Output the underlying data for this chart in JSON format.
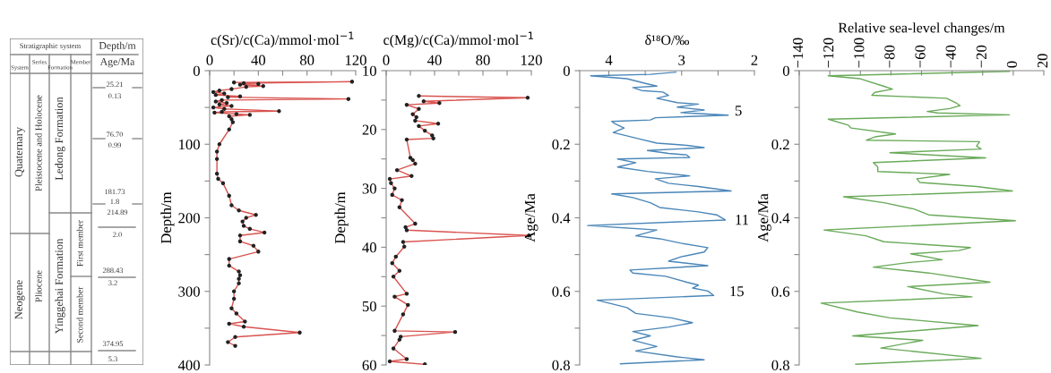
{
  "chart_data": [
    {
      "type": "other",
      "annotations": [
        "Stratigraphic system",
        "Depth/m",
        "Age/Ma",
        "System",
        "Series",
        "Formation",
        "Member",
        "Quaternary",
        "Neogene",
        "Pleistocene and Holocene",
        "Pliocene",
        "Ledong Formation",
        "Yinggehai Formation",
        "First member",
        "Second member",
        "25.21",
        "0.13",
        "76.70",
        "0.99",
        "181.73",
        "1.8",
        "214.89",
        "2.0",
        "288.43",
        "3.2",
        "374.95",
        "5.3"
      ]
    },
    {
      "type": "line",
      "orientation": "horizontal",
      "xlabel": "c(Sr)/c(Ca)/mmol·mol$^{−1}$",
      "ylabel": "Depth/m",
      "marker": "circle",
      "grid": false,
      "xlim": [
        0,
        120
      ],
      "xticks": [
        0,
        {
          "value": 20,
          "label": null
        },
        40,
        {
          "value": 60,
          "label": null
        },
        80,
        {
          "value": 100,
          "label": null
        },
        120
      ],
      "ylim": [
        400,
        0
      ],
      "yticks": [
        0,
        {
          "value": 50,
          "label": null
        },
        100,
        {
          "value": 150,
          "label": null
        },
        200,
        {
          "value": 250,
          "label": null
        },
        300,
        {
          "value": 350,
          "label": null
        },
        400
      ],
      "series": [
        {
          "color": "#d9534f",
          "x": [
            16,
            15,
            17,
            18,
            19,
            21,
            22,
            25,
            27,
            29,
            31,
            33,
            35,
            36,
            38.5,
            40,
            42,
            44,
            46,
            48,
            50,
            52,
            55,
            56,
            57,
            59,
            60,
            62,
            66,
            70,
            80,
            100,
            110,
            120,
            140,
            147,
            153,
            170,
            183,
            190,
            196,
            200,
            205,
            211,
            215,
            220,
            224,
            232,
            238,
            246,
            256,
            265,
            273,
            278,
            283,
            289,
            300,
            310,
            323,
            330,
            341,
            344,
            348,
            356,
            362,
            369,
            374
          ],
          "values": [
            20,
            117,
            28,
            40,
            25,
            44,
            30,
            18,
            8,
            3,
            12,
            5,
            25,
            15,
            114,
            10,
            5,
            14,
            8,
            18,
            3,
            12,
            57,
            10,
            4,
            22,
            33,
            16,
            18,
            19,
            16,
            8,
            6,
            6,
            6,
            7,
            11,
            16,
            18,
            24,
            38,
            30,
            27,
            28,
            33,
            45,
            25,
            25,
            36,
            40,
            16,
            16,
            24,
            25,
            24,
            24,
            20,
            20,
            18,
            22,
            29,
            16,
            28,
            74,
            21,
            15,
            21
          ]
        }
      ]
    },
    {
      "type": "line",
      "orientation": "horizontal",
      "xlabel": "c(Mg)/c(Ca)/mmol·mol$^{−1}$",
      "ylabel": "Depth/m",
      "marker": "circle",
      "grid": false,
      "xlim": [
        0,
        120
      ],
      "xticks": [
        0,
        {
          "value": 20,
          "label": null
        },
        40,
        {
          "value": 60,
          "label": null
        },
        80,
        {
          "value": 100,
          "label": null
        },
        120
      ],
      "ylim": [
        60,
        10
      ],
      "yticks": [
        10,
        {
          "value": 15,
          "label": null
        },
        20,
        {
          "value": 25,
          "label": null
        },
        30,
        {
          "value": 35,
          "label": null
        },
        40,
        {
          "value": 45,
          "label": null
        },
        50,
        {
          "value": 55,
          "label": null
        },
        60
      ],
      "series": [
        {
          "color": "#d9534f",
          "x": [
            14.3,
            14.6,
            15.2,
            15.5,
            15.8,
            16.5,
            17.4,
            17.9,
            18.5,
            19.0,
            19.4,
            20.2,
            21.0,
            21.5,
            21.7,
            24.8,
            25.2,
            25.8,
            26.9,
            27.9,
            28.4,
            29.1,
            30.0,
            31.1,
            32.0,
            33.2,
            36.0,
            36.6,
            37.1,
            38.0,
            39.1,
            39.9,
            41.6,
            42.7,
            44.0,
            45.0,
            47.9,
            48.4,
            49.8,
            51.4,
            54.2,
            54.4,
            55.2,
            55.7,
            57.2,
            59.0,
            59.4,
            59.9
          ],
          "values": [
            27,
            117,
            31,
            44,
            17,
            27,
            22,
            25,
            24,
            43,
            27,
            32,
            38,
            39,
            17,
            20,
            22,
            24,
            9,
            21,
            3,
            4,
            7,
            5,
            13,
            11,
            24,
            16,
            17,
            118,
            14,
            15,
            8,
            5,
            11,
            6,
            17,
            7,
            18,
            14,
            7,
            57,
            12,
            11,
            6,
            17,
            3,
            32
          ]
        }
      ]
    },
    {
      "type": "line",
      "orientation": "horizontal",
      "xlabel": "δ¹⁸O/‰",
      "ylabel": "Age/Ma",
      "marker": "none",
      "grid": false,
      "xlim": [
        4.4,
        2
      ],
      "xticks": [
        4,
        {
          "value": 3.5,
          "label": null
        },
        3,
        {
          "value": 2.5,
          "label": null
        },
        2
      ],
      "ylim": [
        0.8,
        0
      ],
      "yticks": [
        0,
        {
          "value": 0.1,
          "label": null
        },
        0.2,
        {
          "value": 0.3,
          "label": null
        },
        0.4,
        {
          "value": 0.5,
          "label": null
        },
        0.6,
        {
          "value": 0.7,
          "label": null
        },
        0.8
      ],
      "annotations": [
        "5",
        "11",
        "15"
      ],
      "series": [
        {
          "color": "#4a86b8",
          "x": [
            0.004,
            0.01,
            0.014,
            0.022,
            0.034,
            0.042,
            0.046,
            0.054,
            0.058,
            0.067,
            0.075,
            0.087,
            0.091,
            0.099,
            0.107,
            0.114,
            0.121,
            0.128,
            0.134,
            0.138,
            0.144,
            0.156,
            0.168,
            0.185,
            0.197,
            0.203,
            0.209,
            0.217,
            0.225,
            0.229,
            0.236,
            0.24,
            0.25,
            0.262,
            0.274,
            0.286,
            0.294,
            0.306,
            0.315,
            0.327,
            0.335,
            0.345,
            0.359,
            0.372,
            0.384,
            0.392,
            0.406,
            0.421,
            0.433,
            0.449,
            0.457,
            0.469,
            0.481,
            0.493,
            0.506,
            0.518,
            0.53,
            0.542,
            0.55,
            0.559,
            0.575,
            0.583,
            0.591,
            0.599,
            0.611,
            0.624,
            0.644,
            0.66,
            0.672,
            0.685,
            0.697,
            0.709,
            0.721,
            0.733,
            0.75,
            0.762,
            0.778,
            0.786,
            0.797
          ],
          "values": [
            3.08,
            3.43,
            4.25,
            3.75,
            3.51,
            3.34,
            3.67,
            3.55,
            3.26,
            3.18,
            3.34,
            3.06,
            2.77,
            3.06,
            2.69,
            3.01,
            2.36,
            3.36,
            3.43,
            3.96,
            3.92,
            3.79,
            3.94,
            3.59,
            3.34,
            2.93,
            2.69,
            3.47,
            3.18,
            2.93,
            2.89,
            3.88,
            3.63,
            3.88,
            3.47,
            2.89,
            3.36,
            3.18,
            2.77,
            2.32,
            3.96,
            3.67,
            3.43,
            3.3,
            2.77,
            2.52,
            2.4,
            4.29,
            3.34,
            3.63,
            3.3,
            3.01,
            2.64,
            2.69,
            3.01,
            3.18,
            2.64,
            3.71,
            3.67,
            3.22,
            2.93,
            2.77,
            2.85,
            2.64,
            2.56,
            4.16,
            3.75,
            3.63,
            3.14,
            2.85,
            3.18,
            3.67,
            3.43,
            3.67,
            3.34,
            3.63,
            3.06,
            2.69,
            3.84
          ]
        }
      ]
    },
    {
      "type": "line",
      "orientation": "horizontal",
      "xlabel": "Relative sea-level changes/m",
      "ylabel": "Age/Ma",
      "marker": "none",
      "grid": false,
      "xlim": [
        -140,
        20
      ],
      "xticks": [
        {
          "value": -140,
          "label": "−140"
        },
        {
          "value": -120,
          "label": "−120"
        },
        {
          "value": -100,
          "label": "−100"
        },
        {
          "value": -80,
          "label": "−80"
        },
        {
          "value": -60,
          "label": "−60"
        },
        {
          "value": -40,
          "label": "−40"
        },
        {
          "value": -20,
          "label": "−20"
        },
        0,
        20
      ],
      "ylim": [
        0.8,
        0
      ],
      "yticks": [
        0,
        {
          "value": 0.1,
          "label": null
        },
        0.2,
        {
          "value": 0.3,
          "label": null
        },
        0.4,
        {
          "value": 0.5,
          "label": null
        },
        0.6,
        {
          "value": 0.7,
          "label": null
        },
        0.8
      ],
      "series": [
        {
          "color": "#6aaa5a",
          "x": [
            0.002,
            0.014,
            0.022,
            0.042,
            0.05,
            0.059,
            0.067,
            0.075,
            0.087,
            0.095,
            0.103,
            0.111,
            0.115,
            0.12,
            0.132,
            0.148,
            0.156,
            0.172,
            0.18,
            0.189,
            0.193,
            0.205,
            0.213,
            0.223,
            0.237,
            0.25,
            0.262,
            0.274,
            0.282,
            0.294,
            0.304,
            0.315,
            0.327,
            0.343,
            0.359,
            0.376,
            0.392,
            0.408,
            0.433,
            0.449,
            0.465,
            0.481,
            0.489,
            0.498,
            0.514,
            0.522,
            0.534,
            0.55,
            0.575,
            0.587,
            0.607,
            0.615,
            0.632,
            0.656,
            0.672,
            0.693,
            0.721,
            0.733,
            0.754,
            0.782,
            0.798
          ],
          "values": [
            -2.5,
            -121,
            -100,
            -85,
            -79,
            -90.5,
            -92.5,
            -43.6,
            -37.7,
            -34.8,
            -41.6,
            -56.3,
            -49.4,
            -2.5,
            -121,
            -108,
            -106,
            -77,
            -90.5,
            -96,
            -22,
            -24,
            -21,
            -80.7,
            -18,
            -91.5,
            -88.6,
            -88.6,
            -41.6,
            -63.1,
            -61,
            -24,
            -0.5,
            -111,
            -84.6,
            -65,
            -55.3,
            1.4,
            -123.8,
            -96.4,
            -84.6,
            -28,
            -35.7,
            -67,
            -46.5,
            -69,
            -91.5,
            -55.3,
            -15.2,
            -69,
            -45.5,
            -27,
            -125.7,
            -102,
            -80.7,
            -23,
            -105,
            -59.2,
            -86.6,
            -21,
            -103
          ]
        }
      ]
    }
  ]
}
